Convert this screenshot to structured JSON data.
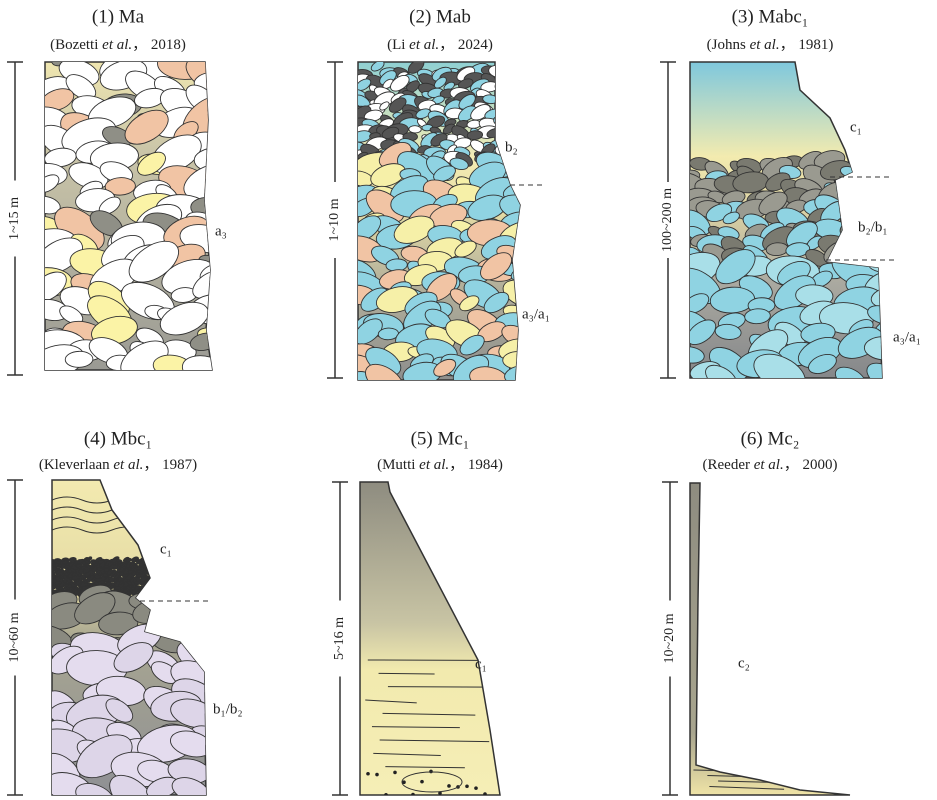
{
  "panels": [
    {
      "title": "(1) Ma",
      "citation": [
        "(Bozetti ",
        "et al.",
        "， 2018)"
      ],
      "scale": "1~15 m",
      "labels": [
        "a₃"
      ]
    },
    {
      "title": "(2) Mab",
      "citation": [
        "(Li ",
        "et al.",
        "， 2024)"
      ],
      "scale": "1~10 m",
      "labels": [
        "b₂",
        "a₃/a₁"
      ]
    },
    {
      "title": "(3) Mabc₁",
      "citation": [
        "(Johns ",
        "et al.",
        "， 1981)"
      ],
      "scale": "100~200 m",
      "labels": [
        "c₁",
        "b₂/b₁",
        "a₃/a₁"
      ]
    },
    {
      "title": "(4) Mbc₁",
      "citation": [
        "(Kleverlaan ",
        "et al.",
        "， 1987)"
      ],
      "scale": "10~60 m",
      "labels": [
        "c₁",
        "b₁/b₂"
      ]
    },
    {
      "title": "(5) Mc₁",
      "citation": [
        "(Mutti ",
        "et al.",
        "， 1984)"
      ],
      "scale": "5~16 m",
      "labels": [
        "c₁"
      ]
    },
    {
      "title": "(6) Mc₂",
      "citation": [
        "(Reeder ",
        "et al.",
        "， 2000)"
      ],
      "scale": "10~20 m",
      "labels": [
        "c₂"
      ]
    }
  ]
}
